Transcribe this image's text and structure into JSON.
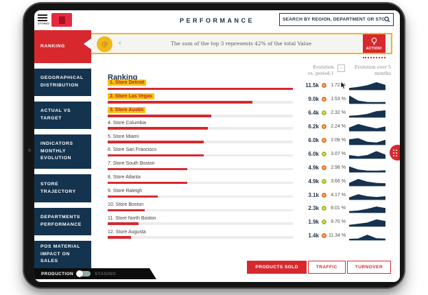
{
  "topbar": {
    "menu_label": "STORES",
    "title": "PERFORMANCE",
    "search_placeholder": "SEARCH BY REGION, DEPARTMENT OR STORE"
  },
  "sidebar": {
    "items": [
      {
        "label": "RANKING",
        "active": true
      },
      {
        "label": "GEOGRAPHICAL DISTRIBUTION",
        "active": false
      },
      {
        "label": "ACTUAL VS TARGET",
        "active": false
      },
      {
        "label": "INDICATORS MONTHLY EVOLUTION",
        "active": false
      },
      {
        "label": "STORE TRAJECTORY",
        "active": false
      },
      {
        "label": "DEPARTMENTS PERFORMANCE",
        "active": false
      },
      {
        "label": "POS MATERIAL IMPACT ON SALES",
        "active": false
      }
    ]
  },
  "banner": {
    "message": "The sum of the top 3 represents 42% of the total Value",
    "action_label": "ACTION!"
  },
  "content": {
    "heading": "Ranking",
    "columns": {
      "evolution_period_line1": "Evolution",
      "evolution_period_line2": "vs. period-1",
      "evolution_months_line1": "Evolution over 5",
      "evolution_months_line2": "months",
      "period_toggle": "›"
    },
    "rows": [
      {
        "rank": 1,
        "store": "Store Detroit",
        "highlighted": true,
        "bar": 1.0,
        "value": "11.5k",
        "trend": "orange",
        "evolution": "1.72 %",
        "spark": [
          0.15,
          0.3,
          0.5,
          0.9,
          0.55
        ]
      },
      {
        "rank": 2,
        "store": "Store Las Vegas",
        "highlighted": true,
        "bar": 0.78,
        "value": "9.0k",
        "trend": "orange",
        "evolution": "1.53 %",
        "spark": [
          0.95,
          0.3,
          0.12,
          0.1,
          0.12
        ]
      },
      {
        "rank": 3,
        "store": "Store Austin",
        "highlighted": true,
        "bar": 0.56,
        "value": "6.4k",
        "trend": "green",
        "evolution": "2.32 %",
        "spark": [
          0.1,
          0.18,
          0.35,
          0.7,
          0.8
        ]
      },
      {
        "rank": 4,
        "store": "Store Columbia",
        "highlighted": false,
        "bar": 0.54,
        "value": "6.2k",
        "trend": "orange",
        "evolution": "2.24 %",
        "spark": [
          0.35,
          0.8,
          0.5,
          0.25,
          0.5
        ]
      },
      {
        "rank": 5,
        "store": "Store Miami",
        "highlighted": false,
        "bar": 0.52,
        "value": "6.0k",
        "trend": "orange",
        "evolution": "2.09 %",
        "spark": [
          0.6,
          0.75,
          0.3,
          0.2,
          0.55
        ]
      },
      {
        "rank": 6,
        "store": "Store San Francisco",
        "highlighted": false,
        "bar": 0.52,
        "value": "6.0k",
        "trend": "green",
        "evolution": "3.07 %",
        "spark": [
          0.35,
          0.2,
          0.35,
          0.85,
          0.4
        ]
      },
      {
        "rank": 7,
        "store": "Store South Boston",
        "highlighted": false,
        "bar": 0.43,
        "value": "4.9k",
        "trend": "orange",
        "evolution": "2.98 %",
        "spark": [
          0.65,
          0.25,
          0.12,
          0.1,
          0.15
        ]
      },
      {
        "rank": 8,
        "store": "Store Atlanta",
        "highlighted": false,
        "bar": 0.43,
        "value": "4.9k",
        "trend": "green",
        "evolution": "3.66 %",
        "spark": [
          0.3,
          0.8,
          0.45,
          0.3,
          0.25
        ]
      },
      {
        "rank": 9,
        "store": "Store Raleigh",
        "highlighted": false,
        "bar": 0.27,
        "value": "3.1k",
        "trend": "orange",
        "evolution": "4.17 %",
        "spark": [
          0.2,
          0.6,
          0.35,
          0.25,
          0.35
        ]
      },
      {
        "rank": 10,
        "store": "Store Boston",
        "highlighted": false,
        "bar": 0.2,
        "value": "2.3k",
        "trend": "green",
        "evolution": "8.01 %",
        "spark": [
          0.1,
          0.2,
          0.4,
          0.7,
          0.5
        ]
      },
      {
        "rank": 11,
        "store": "Store North Boston",
        "highlighted": false,
        "bar": 0.165,
        "value": "1.9k",
        "trend": "green",
        "evolution": "9.70 %",
        "spark": [
          0.1,
          0.25,
          0.4,
          0.8,
          0.6
        ]
      },
      {
        "rank": 12,
        "store": "Store Augusta",
        "highlighted": false,
        "bar": 0.125,
        "value": "1.4k",
        "trend": "orange",
        "evolution": "11.34 %",
        "spark": [
          0.08,
          0.12,
          0.6,
          0.15,
          0.1
        ]
      }
    ]
  },
  "footer": {
    "metric_buttons": [
      {
        "label": "PRODUCTS SOLD",
        "active": true
      },
      {
        "label": "TRAFFIC",
        "active": false
      },
      {
        "label": "TURNOVER",
        "active": false
      }
    ],
    "environment": {
      "left_label": "PRODUCTION",
      "right_label": "STAGING",
      "selected": "PRODUCTION"
    }
  },
  "colors": {
    "red": "#d7282e",
    "navy": "#14334f",
    "gold": "#eeb71c",
    "orange_dot": "#e4711f",
    "green_dot": "#a9b624",
    "spark_fill": "#16334f"
  }
}
